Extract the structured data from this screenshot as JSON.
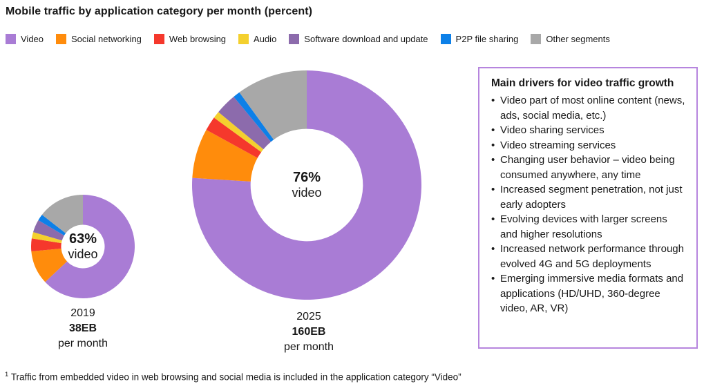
{
  "title": "Mobile traffic by application category per month (percent)",
  "chart_data": {
    "type": "pie",
    "subtype": "donut",
    "title": "Mobile traffic by application category per month (percent)",
    "legend_position": "top",
    "categories": [
      "Video",
      "Social networking",
      "Web browsing",
      "Audio",
      "Software download and update",
      "P2P file sharing",
      "Other segments"
    ],
    "colors": [
      "#A97CD5",
      "#FF8C0C",
      "#F5382C",
      "#F4D02E",
      "#8C6BAC",
      "#0D80E8",
      "#A8A8A8"
    ],
    "charts": [
      {
        "year": "2019",
        "total": "38EB",
        "cadence": "per month",
        "center_value": "63%",
        "center_word": "video",
        "values": [
          63,
          10.5,
          4,
          2,
          4,
          2,
          14.5
        ]
      },
      {
        "year": "2025",
        "total": "160EB",
        "cadence": "per month",
        "center_value": "76%",
        "center_word": "video",
        "values": [
          76,
          7,
          2,
          1,
          3,
          1,
          10
        ]
      }
    ]
  },
  "callout": {
    "border_color": "#B685DE",
    "title": "Main drivers for video traffic growth",
    "bullets": [
      "Video part of most online content (news, ads, social media, etc.)",
      "Video sharing services",
      "Video streaming services",
      "Changing user behavior – video being consumed anywhere, any time",
      "Increased segment penetration, not just early adopters",
      "Evolving devices with larger screens and higher resolutions",
      "Increased network performance through evolved 4G and 5G deployments",
      "Emerging immersive media formats and applications (HD/UHD, 360-degree video, AR, VR)"
    ]
  },
  "footnote": {
    "marker": "1",
    "text": "Traffic from embedded video in web browsing and social media is included in the application category “Video”"
  }
}
